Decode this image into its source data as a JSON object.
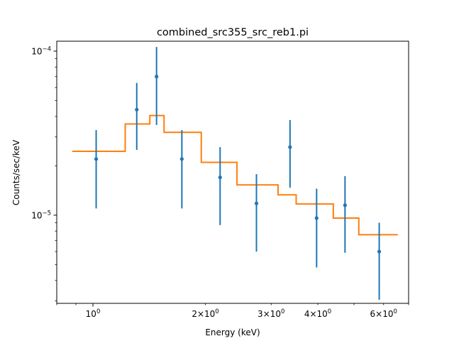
{
  "chart_data": {
    "type": "scatter",
    "title": "combined_src355_src_reb1.pi",
    "xlabel": "Energy (keV)",
    "ylabel": "Counts/sec/keV",
    "xscale": "log",
    "yscale": "log",
    "xlim": [
      0.8,
      7.0
    ],
    "ylim": [
      2.9e-06,
      0.000115
    ],
    "grid": false,
    "x_major_ticks": [
      {
        "value": 1,
        "base": "10",
        "exp": "0"
      }
    ],
    "x_minor_labeled_ticks": [
      {
        "value": 2,
        "coef": "2",
        "base": "10",
        "exp": "0"
      },
      {
        "value": 3,
        "coef": "3",
        "base": "10",
        "exp": "0"
      },
      {
        "value": 4,
        "coef": "4",
        "base": "10",
        "exp": "0"
      },
      {
        "value": 6,
        "coef": "6",
        "base": "10",
        "exp": "0"
      }
    ],
    "y_major_ticks": [
      {
        "value": 0.0001,
        "base": "10",
        "exp": "−4"
      },
      {
        "value": 1e-05,
        "base": "10",
        "exp": "−5"
      }
    ],
    "series": [
      {
        "kind": "errorbar",
        "color": "#1f77b4",
        "points": [
          {
            "x": 1.02,
            "y": 2.2e-05,
            "ylo": 1.1e-05,
            "yhi": 3.3e-05
          },
          {
            "x": 1.31,
            "y": 4.4e-05,
            "ylo": 2.5e-05,
            "yhi": 6.4e-05
          },
          {
            "x": 1.48,
            "y": 7e-05,
            "ylo": 3.55e-05,
            "yhi": 0.000106
          },
          {
            "x": 1.73,
            "y": 2.2e-05,
            "ylo": 1.1e-05,
            "yhi": 3.3e-05
          },
          {
            "x": 2.19,
            "y": 1.7e-05,
            "ylo": 8.7e-06,
            "yhi": 2.6e-05
          },
          {
            "x": 2.74,
            "y": 1.18e-05,
            "ylo": 6e-06,
            "yhi": 1.78e-05
          },
          {
            "x": 3.37,
            "y": 2.6e-05,
            "ylo": 1.47e-05,
            "yhi": 3.8e-05
          },
          {
            "x": 3.97,
            "y": 9.6e-06,
            "ylo": 4.8e-06,
            "yhi": 1.45e-05
          },
          {
            "x": 4.73,
            "y": 1.15e-05,
            "ylo": 5.9e-06,
            "yhi": 1.73e-05
          },
          {
            "x": 5.84,
            "y": 6e-06,
            "ylo": 3.05e-06,
            "yhi": 9e-06
          }
        ]
      },
      {
        "kind": "step",
        "color": "#ff7f0e",
        "edges": [
          0.88,
          1.22,
          1.42,
          1.55,
          1.95,
          2.43,
          3.13,
          3.5,
          4.4,
          5.15,
          6.55
        ],
        "values": [
          2.45e-05,
          3.6e-05,
          4.05e-05,
          3.2e-05,
          2.1e-05,
          1.53e-05,
          1.33e-05,
          1.17e-05,
          9.6e-06,
          7.6e-06
        ]
      }
    ]
  }
}
